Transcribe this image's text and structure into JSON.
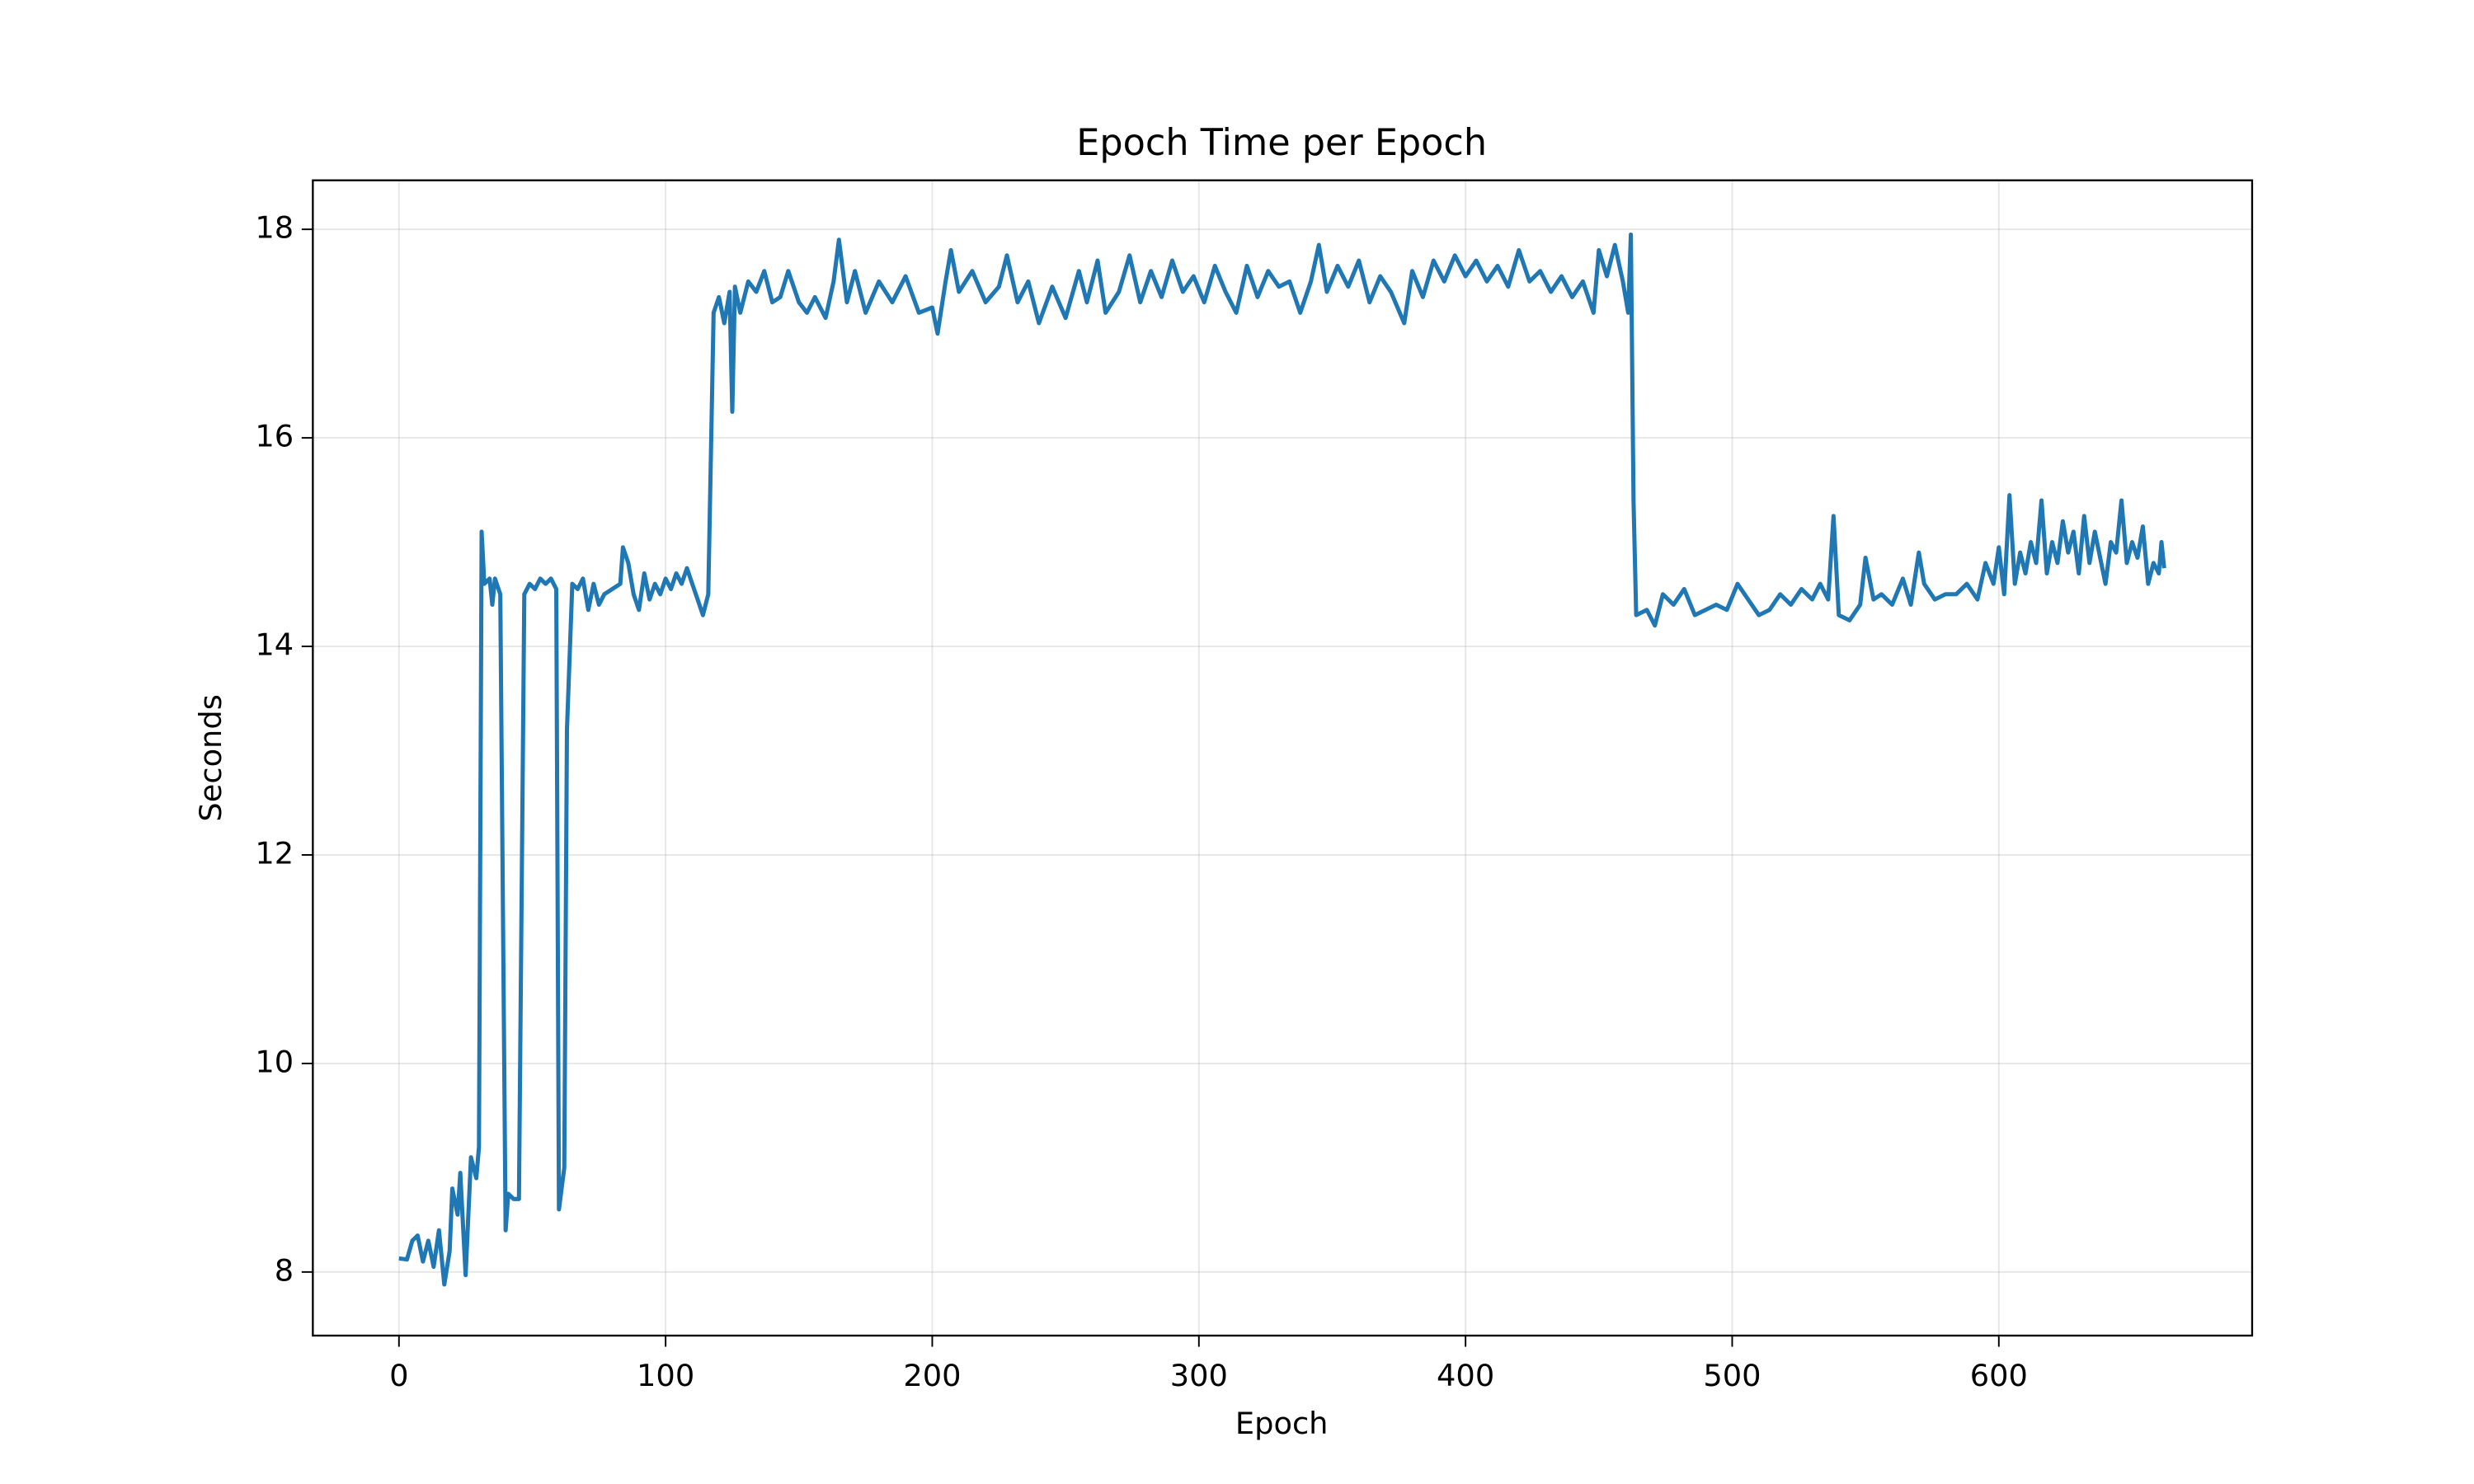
{
  "chart_data": {
    "type": "line",
    "title": "Epoch Time per Epoch",
    "x_label": "Epoch",
    "y_label": "Seconds",
    "x": [
      0,
      3,
      5,
      7,
      9,
      11,
      13,
      15,
      17,
      19,
      20,
      22,
      23,
      25,
      27,
      29,
      30,
      31,
      32,
      34,
      35,
      36,
      38,
      40,
      41,
      43,
      45,
      47,
      49,
      51,
      53,
      55,
      57,
      59,
      60,
      62,
      63,
      65,
      67,
      69,
      71,
      73,
      75,
      77,
      80,
      83,
      84,
      86,
      88,
      90,
      92,
      94,
      96,
      98,
      100,
      102,
      104,
      106,
      108,
      110,
      112,
      114,
      116,
      118,
      120,
      122,
      124,
      125,
      126,
      128,
      131,
      134,
      137,
      140,
      143,
      146,
      150,
      153,
      156,
      160,
      163,
      165,
      168,
      171,
      175,
      180,
      185,
      190,
      195,
      200,
      202,
      205,
      207,
      210,
      215,
      220,
      225,
      228,
      232,
      236,
      240,
      245,
      250,
      255,
      258,
      262,
      265,
      270,
      274,
      278,
      282,
      286,
      290,
      294,
      298,
      302,
      306,
      310,
      314,
      318,
      322,
      326,
      330,
      334,
      338,
      342,
      345,
      348,
      352,
      356,
      360,
      364,
      368,
      372,
      377,
      380,
      384,
      388,
      392,
      396,
      400,
      404,
      408,
      412,
      416,
      420,
      424,
      428,
      432,
      436,
      440,
      444,
      448,
      450,
      453,
      456,
      459,
      461,
      462,
      463,
      464,
      468,
      471,
      474,
      478,
      482,
      486,
      490,
      494,
      498,
      502,
      506,
      510,
      514,
      518,
      522,
      526,
      530,
      533,
      536,
      538,
      540,
      544,
      548,
      550,
      553,
      556,
      560,
      564,
      567,
      570,
      572,
      576,
      580,
      584,
      588,
      592,
      595,
      598,
      600,
      602,
      604,
      606,
      608,
      610,
      612,
      614,
      616,
      618,
      620,
      622,
      624,
      626,
      628,
      630,
      632,
      634,
      636,
      638,
      640,
      642,
      644,
      646,
      648,
      650,
      652,
      654,
      656,
      658,
      660,
      661,
      662
    ],
    "series": [
      {
        "name": "Epoch Time",
        "color": "#1f77b4",
        "values": [
          8.13,
          8.12,
          8.3,
          8.35,
          8.1,
          8.3,
          8.05,
          8.4,
          7.88,
          8.2,
          8.8,
          8.55,
          8.95,
          7.97,
          9.1,
          8.9,
          9.2,
          15.1,
          14.6,
          14.65,
          14.4,
          14.65,
          14.5,
          8.4,
          8.75,
          8.7,
          8.7,
          14.5,
          14.6,
          14.55,
          14.65,
          14.6,
          14.65,
          14.55,
          8.6,
          9.0,
          13.2,
          14.6,
          14.55,
          14.65,
          14.35,
          14.6,
          14.4,
          14.5,
          14.55,
          14.6,
          14.95,
          14.8,
          14.5,
          14.35,
          14.7,
          14.45,
          14.6,
          14.5,
          14.65,
          14.55,
          14.7,
          14.6,
          14.75,
          14.6,
          14.45,
          14.3,
          14.5,
          17.2,
          17.35,
          17.1,
          17.4,
          16.25,
          17.45,
          17.2,
          17.5,
          17.4,
          17.6,
          17.3,
          17.35,
          17.6,
          17.3,
          17.2,
          17.35,
          17.15,
          17.5,
          17.9,
          17.3,
          17.6,
          17.2,
          17.5,
          17.3,
          17.55,
          17.2,
          17.25,
          17.0,
          17.5,
          17.8,
          17.4,
          17.6,
          17.3,
          17.45,
          17.75,
          17.3,
          17.5,
          17.1,
          17.45,
          17.15,
          17.6,
          17.3,
          17.7,
          17.2,
          17.4,
          17.75,
          17.3,
          17.6,
          17.35,
          17.7,
          17.4,
          17.55,
          17.3,
          17.65,
          17.4,
          17.2,
          17.65,
          17.35,
          17.6,
          17.45,
          17.5,
          17.2,
          17.5,
          17.85,
          17.4,
          17.65,
          17.45,
          17.7,
          17.3,
          17.55,
          17.4,
          17.1,
          17.6,
          17.35,
          17.7,
          17.5,
          17.75,
          17.55,
          17.7,
          17.5,
          17.65,
          17.45,
          17.8,
          17.5,
          17.6,
          17.4,
          17.55,
          17.35,
          17.5,
          17.2,
          17.8,
          17.55,
          17.85,
          17.5,
          17.2,
          17.95,
          15.4,
          14.3,
          14.35,
          14.2,
          14.5,
          14.4,
          14.55,
          14.3,
          14.35,
          14.4,
          14.35,
          14.6,
          14.45,
          14.3,
          14.35,
          14.5,
          14.4,
          14.55,
          14.45,
          14.6,
          14.45,
          15.25,
          14.3,
          14.25,
          14.4,
          14.85,
          14.45,
          14.5,
          14.4,
          14.65,
          14.4,
          14.9,
          14.6,
          14.45,
          14.5,
          14.5,
          14.6,
          14.45,
          14.8,
          14.6,
          14.95,
          14.5,
          15.45,
          14.6,
          14.9,
          14.7,
          15.0,
          14.8,
          15.4,
          14.7,
          15.0,
          14.8,
          15.2,
          14.9,
          15.1,
          14.7,
          15.25,
          14.8,
          15.1,
          14.85,
          14.6,
          15.0,
          14.9,
          15.4,
          14.8,
          15.0,
          14.85,
          15.15,
          14.6,
          14.8,
          14.7,
          15.0,
          14.75
        ]
      }
    ],
    "xlim": [
      -32.3,
      695
    ],
    "ylim": [
      7.39,
      18.47
    ],
    "xticks": [
      0,
      100,
      200,
      300,
      400,
      500,
      600
    ],
    "yticks": [
      8,
      10,
      12,
      14,
      16,
      18
    ],
    "grid": true
  }
}
